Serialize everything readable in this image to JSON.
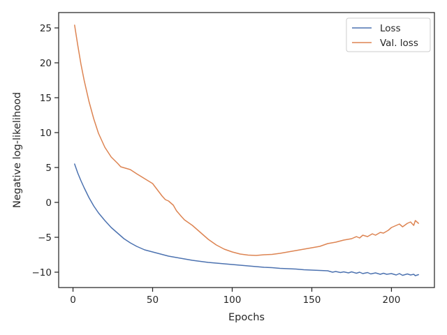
{
  "chart_data": {
    "type": "line",
    "title": "",
    "xlabel": "Epochs",
    "ylabel": "Negative log-likelihood",
    "xlim": [
      -9,
      227
    ],
    "ylim": [
      -12.2,
      27.2
    ],
    "xticks": [
      0,
      50,
      100,
      150,
      200
    ],
    "yticks": [
      -10,
      -5,
      0,
      5,
      10,
      15,
      20,
      25
    ],
    "grid": false,
    "legend": "top-right",
    "series": [
      {
        "name": "Loss",
        "color": "#4c72b0",
        "x": [
          1,
          3,
          5,
          7,
          10,
          13,
          16,
          20,
          24,
          28,
          32,
          36,
          40,
          45,
          50,
          55,
          60,
          65,
          70,
          75,
          80,
          85,
          90,
          95,
          100,
          105,
          110,
          115,
          120,
          125,
          130,
          135,
          140,
          145,
          150,
          155,
          160,
          163,
          165,
          168,
          170,
          173,
          175,
          178,
          180,
          182,
          185,
          187,
          190,
          193,
          195,
          197,
          200,
          203,
          205,
          207,
          210,
          212,
          214,
          215,
          217
        ],
        "y": [
          5.5,
          4.2,
          3.1,
          2.1,
          0.7,
          -0.5,
          -1.5,
          -2.6,
          -3.6,
          -4.4,
          -5.2,
          -5.8,
          -6.3,
          -6.8,
          -7.1,
          -7.4,
          -7.7,
          -7.9,
          -8.1,
          -8.3,
          -8.45,
          -8.6,
          -8.7,
          -8.8,
          -8.9,
          -9.0,
          -9.1,
          -9.2,
          -9.3,
          -9.35,
          -9.45,
          -9.5,
          -9.55,
          -9.65,
          -9.7,
          -9.75,
          -9.8,
          -10.0,
          -9.9,
          -10.05,
          -9.95,
          -10.1,
          -9.95,
          -10.15,
          -10.0,
          -10.2,
          -10.05,
          -10.25,
          -10.1,
          -10.3,
          -10.15,
          -10.3,
          -10.2,
          -10.4,
          -10.2,
          -10.45,
          -10.25,
          -10.4,
          -10.3,
          -10.5,
          -10.35
        ]
      },
      {
        "name": "Val. loss",
        "color": "#dd8452",
        "x": [
          1,
          3,
          5,
          7,
          10,
          13,
          16,
          20,
          24,
          28,
          30,
          33,
          36,
          38,
          40,
          45,
          50,
          53,
          56,
          58,
          60,
          63,
          65,
          68,
          70,
          75,
          80,
          85,
          90,
          95,
          100,
          105,
          110,
          115,
          120,
          125,
          130,
          135,
          140,
          145,
          150,
          155,
          160,
          165,
          170,
          175,
          178,
          180,
          182,
          185,
          188,
          190,
          193,
          195,
          198,
          200,
          203,
          205,
          207,
          210,
          212,
          214,
          215,
          217
        ],
        "y": [
          25.4,
          22.5,
          19.8,
          17.5,
          14.5,
          12.0,
          9.9,
          7.9,
          6.5,
          5.6,
          5.1,
          4.9,
          4.7,
          4.4,
          4.1,
          3.4,
          2.7,
          1.8,
          0.9,
          0.4,
          0.2,
          -0.4,
          -1.2,
          -2.0,
          -2.5,
          -3.3,
          -4.3,
          -5.3,
          -6.1,
          -6.7,
          -7.1,
          -7.4,
          -7.55,
          -7.6,
          -7.5,
          -7.45,
          -7.3,
          -7.1,
          -6.9,
          -6.7,
          -6.5,
          -6.3,
          -5.9,
          -5.7,
          -5.4,
          -5.2,
          -4.9,
          -5.1,
          -4.7,
          -4.9,
          -4.5,
          -4.7,
          -4.3,
          -4.4,
          -4.0,
          -3.6,
          -3.3,
          -3.1,
          -3.5,
          -3.0,
          -2.8,
          -3.3,
          -2.6,
          -3.0
        ]
      }
    ]
  }
}
